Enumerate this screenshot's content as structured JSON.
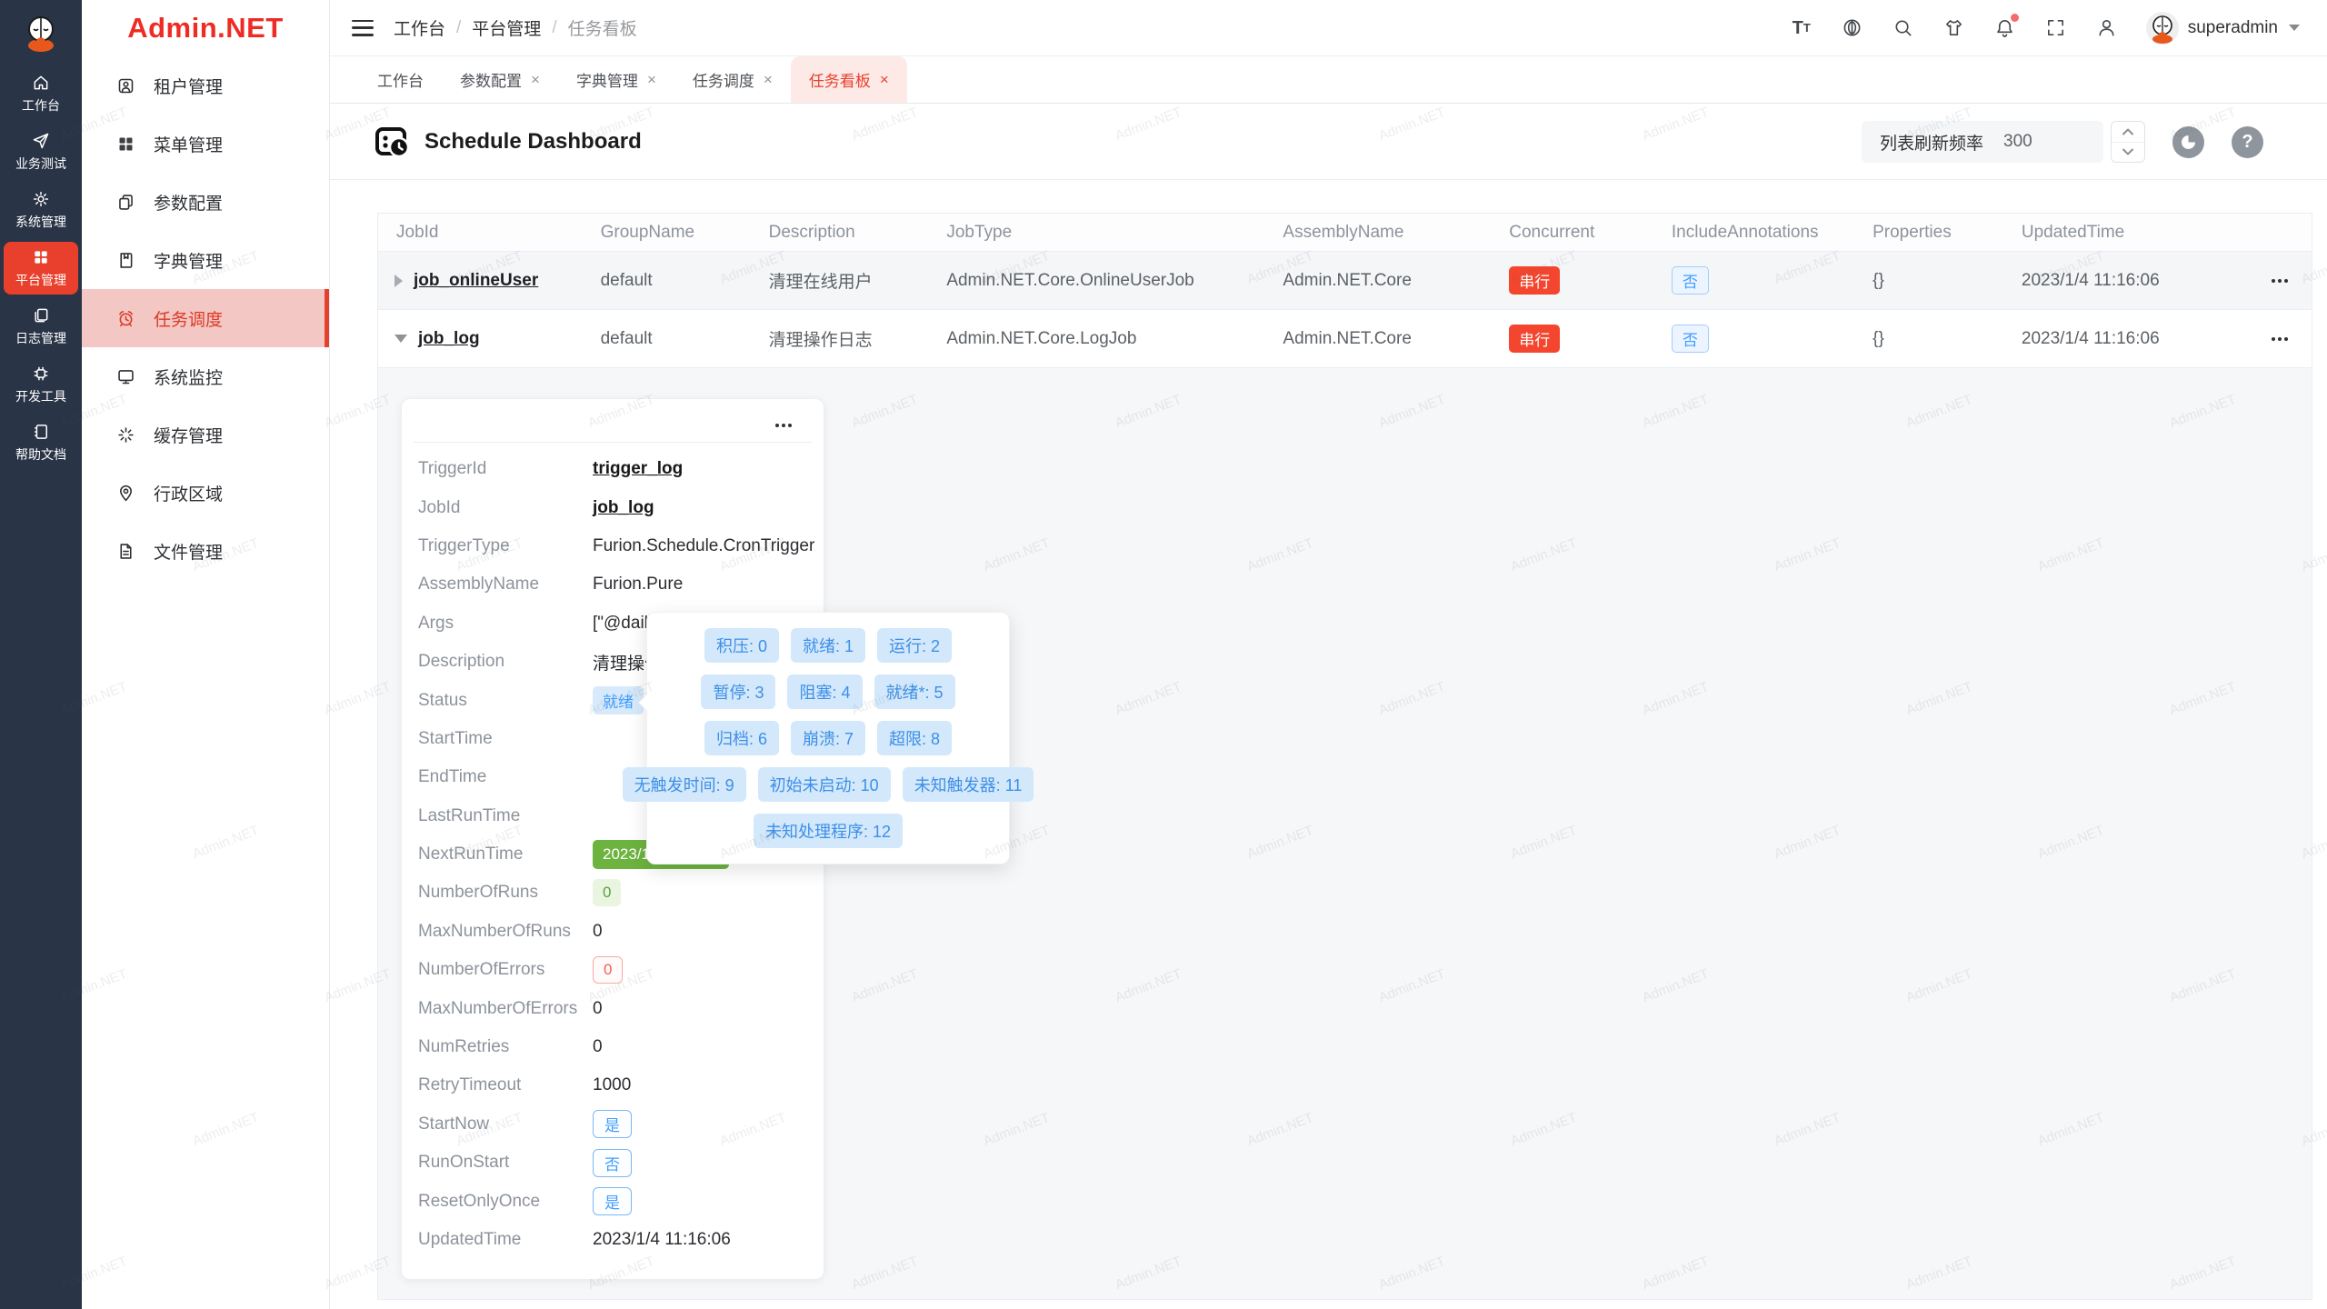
{
  "palette": {
    "brand_red": "#e8402c",
    "logo_red": "#ee2b24",
    "sidebar_dark": "#2a3447",
    "active_menu_bg": "#f3c7c3",
    "blue": "#409eff",
    "legend_blue_bg": "#d3e8fa",
    "green_dark": "#6db33f",
    "danger_red": "#f4462e"
  },
  "watermark": {
    "text": "Admin.NET"
  },
  "rail": {
    "items": [
      {
        "label": "工作台"
      },
      {
        "label": "业务测试"
      },
      {
        "label": "系统管理"
      },
      {
        "label": "平台管理"
      },
      {
        "label": "日志管理"
      },
      {
        "label": "开发工具"
      },
      {
        "label": "帮助文档"
      }
    ]
  },
  "sidebar": {
    "logo": "Admin.NET",
    "items": [
      {
        "label": "租户管理"
      },
      {
        "label": "菜单管理"
      },
      {
        "label": "参数配置"
      },
      {
        "label": "字典管理"
      },
      {
        "label": "任务调度"
      },
      {
        "label": "系统监控"
      },
      {
        "label": "缓存管理"
      },
      {
        "label": "行政区域"
      },
      {
        "label": "文件管理"
      }
    ]
  },
  "topbar": {
    "breadcrumb": [
      "工作台",
      "平台管理",
      "任务看板"
    ],
    "separator": "/",
    "username": "superadmin"
  },
  "tabs": [
    {
      "label": "工作台"
    },
    {
      "label": "参数配置",
      "close": "×"
    },
    {
      "label": "字典管理",
      "close": "×"
    },
    {
      "label": "任务调度",
      "close": "×"
    },
    {
      "label": "任务看板",
      "close": "×"
    }
  ],
  "page": {
    "title": "Schedule Dashboard",
    "refresh_label": "列表刷新频率",
    "refresh_value": "300"
  },
  "table": {
    "columns": [
      "JobId",
      "GroupName",
      "Description",
      "JobType",
      "AssemblyName",
      "Concurrent",
      "IncludeAnnotations",
      "Properties",
      "UpdatedTime"
    ],
    "rows": [
      {
        "jobId": "job_onlineUser",
        "groupName": "default",
        "description": "清理在线用户",
        "jobType": "Admin.NET.Core.OnlineUserJob",
        "assemblyName": "Admin.NET.Core",
        "concurrent": "串行",
        "includeAnnotations": "否",
        "properties": "{}",
        "updatedTime": "2023/1/4 11:16:06"
      },
      {
        "jobId": "job_log",
        "groupName": "default",
        "description": "清理操作日志",
        "jobType": "Admin.NET.Core.LogJob",
        "assemblyName": "Admin.NET.Core",
        "concurrent": "串行",
        "includeAnnotations": "否",
        "properties": "{}",
        "updatedTime": "2023/1/4 11:16:06"
      }
    ]
  },
  "detail": {
    "fields": [
      {
        "label": "TriggerId",
        "value": "trigger_log",
        "kind": "link"
      },
      {
        "label": "JobId",
        "value": "job_log",
        "kind": "link"
      },
      {
        "label": "TriggerType",
        "value": "Furion.Schedule.CronTrigger",
        "kind": "text"
      },
      {
        "label": "AssemblyName",
        "value": "Furion.Pure",
        "kind": "text"
      },
      {
        "label": "Args",
        "value": "[\"@daily\"]",
        "kind": "text"
      },
      {
        "label": "Description",
        "value": "清理操作日志",
        "kind": "text"
      },
      {
        "label": "Status",
        "value": "就绪",
        "kind": "tag-status"
      },
      {
        "label": "StartTime",
        "value": "",
        "kind": "empty"
      },
      {
        "label": "EndTime",
        "value": "",
        "kind": "empty"
      },
      {
        "label": "LastRunTime",
        "value": "",
        "kind": "empty"
      },
      {
        "label": "NextRunTime",
        "value": "2023/1/5 0:00:00",
        "kind": "tag-green-dark"
      },
      {
        "label": "NumberOfRuns",
        "value": "0",
        "kind": "tag-green-light"
      },
      {
        "label": "MaxNumberOfRuns",
        "value": "0",
        "kind": "text"
      },
      {
        "label": "NumberOfErrors",
        "value": "0",
        "kind": "tag-red-plain"
      },
      {
        "label": "MaxNumberOfErrors",
        "value": "0",
        "kind": "text"
      },
      {
        "label": "NumRetries",
        "value": "0",
        "kind": "text"
      },
      {
        "label": "RetryTimeout",
        "value": "1000",
        "kind": "text"
      },
      {
        "label": "StartNow",
        "value": "是",
        "kind": "tag-blue-plain"
      },
      {
        "label": "RunOnStart",
        "value": "否",
        "kind": "tag-blue-plain"
      },
      {
        "label": "ResetOnlyOnce",
        "value": "是",
        "kind": "tag-blue-plain"
      },
      {
        "label": "UpdatedTime",
        "value": "2023/1/4 11:16:06",
        "kind": "text"
      }
    ]
  },
  "legend": {
    "rows": [
      [
        "积压: 0",
        "就绪: 1",
        "运行: 2"
      ],
      [
        "暂停: 3",
        "阻塞: 4",
        "就绪*: 5"
      ],
      [
        "归档: 6",
        "崩溃: 7",
        "超限: 8"
      ],
      [
        "无触发时间: 9",
        "初始未启动: 10",
        "未知触发器: 11"
      ],
      [
        "未知处理程序: 12"
      ]
    ]
  }
}
